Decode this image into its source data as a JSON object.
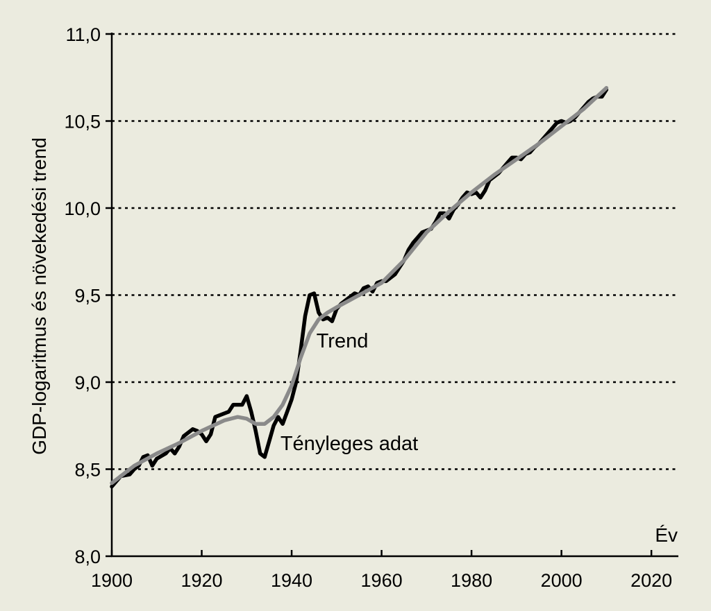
{
  "chart_data": {
    "type": "line",
    "title": "",
    "xlabel": "Év",
    "ylabel": "GDP-logaritmus és növekedési trend",
    "xlim": [
      1900,
      2026
    ],
    "ylim": [
      8.0,
      11.0
    ],
    "xticks": [
      1900,
      1920,
      1940,
      1960,
      1980,
      2000,
      2020
    ],
    "xtick_labels": [
      "1900",
      "1920",
      "1940",
      "1960",
      "1980",
      "2000",
      "2020"
    ],
    "yticks": [
      8.0,
      8.5,
      9.0,
      9.5,
      10.0,
      10.5,
      11.0
    ],
    "ytick_labels": [
      "8,0",
      "8,5",
      "9,0",
      "9,5",
      "10,0",
      "10,5",
      "11,0"
    ],
    "grid": "horizontal dotted",
    "series": [
      {
        "name": "Tényleges adat",
        "color": "#000000",
        "x": [
          1900,
          1902,
          1904,
          1905,
          1906,
          1907,
          1908,
          1909,
          1910,
          1912,
          1913,
          1914,
          1915,
          1916,
          1918,
          1919,
          1920,
          1921,
          1922,
          1923,
          1924,
          1926,
          1927,
          1928,
          1929,
          1930,
          1931,
          1932,
          1933,
          1934,
          1935,
          1936,
          1937,
          1938,
          1939,
          1940,
          1941,
          1942,
          1943,
          1944,
          1945,
          1946,
          1947,
          1948,
          1949,
          1950,
          1951,
          1953,
          1954,
          1955,
          1956,
          1957,
          1958,
          1959,
          1960,
          1961,
          1962,
          1963,
          1964,
          1965,
          1966,
          1967,
          1968,
          1969,
          1970,
          1971,
          1972,
          1973,
          1974,
          1975,
          1976,
          1977,
          1978,
          1979,
          1980,
          1981,
          1982,
          1983,
          1984,
          1985,
          1986,
          1987,
          1988,
          1989,
          1990,
          1991,
          1992,
          1993,
          1994,
          1995,
          1996,
          1997,
          1998,
          1999,
          2000,
          2001,
          2002,
          2003,
          2004,
          2005,
          2006,
          2007,
          2008,
          2009,
          2010
        ],
        "y": [
          8.4,
          8.46,
          8.47,
          8.5,
          8.52,
          8.57,
          8.58,
          8.52,
          8.56,
          8.59,
          8.62,
          8.59,
          8.63,
          8.69,
          8.73,
          8.72,
          8.7,
          8.66,
          8.7,
          8.8,
          8.81,
          8.83,
          8.87,
          8.87,
          8.87,
          8.92,
          8.83,
          8.72,
          8.59,
          8.57,
          8.66,
          8.75,
          8.8,
          8.76,
          8.83,
          8.9,
          9.0,
          9.18,
          9.38,
          9.5,
          9.51,
          9.4,
          9.36,
          9.37,
          9.35,
          9.42,
          9.45,
          9.49,
          9.51,
          9.5,
          9.54,
          9.55,
          9.52,
          9.57,
          9.58,
          9.58,
          9.6,
          9.62,
          9.66,
          9.7,
          9.76,
          9.8,
          9.83,
          9.86,
          9.87,
          9.88,
          9.92,
          9.97,
          9.97,
          9.94,
          9.99,
          10.02,
          10.06,
          10.09,
          10.08,
          10.09,
          10.06,
          10.1,
          10.16,
          10.18,
          10.2,
          10.23,
          10.26,
          10.29,
          10.29,
          10.28,
          10.31,
          10.32,
          10.35,
          10.37,
          10.4,
          10.43,
          10.46,
          10.49,
          10.5,
          10.49,
          10.5,
          10.52,
          10.55,
          10.58,
          10.61,
          10.63,
          10.64,
          10.64,
          10.68
        ]
      },
      {
        "name": "Trend",
        "color": "#8a8a8a",
        "x": [
          1900,
          1905,
          1910,
          1915,
          1920,
          1925,
          1928,
          1930,
          1932,
          1934,
          1936,
          1938,
          1940,
          1942,
          1944,
          1946,
          1948,
          1950,
          1955,
          1960,
          1965,
          1970,
          1975,
          1980,
          1985,
          1990,
          1995,
          2000,
          2005,
          2010
        ],
        "y": [
          8.42,
          8.52,
          8.59,
          8.65,
          8.72,
          8.78,
          8.8,
          8.79,
          8.76,
          8.76,
          8.8,
          8.87,
          8.98,
          9.14,
          9.28,
          9.36,
          9.4,
          9.43,
          9.5,
          9.57,
          9.7,
          9.86,
          9.98,
          10.09,
          10.19,
          10.28,
          10.37,
          10.47,
          10.57,
          10.69
        ]
      }
    ],
    "annotations": [
      {
        "text": "Trend",
        "x": 1945.5,
        "y": 9.2
      },
      {
        "text": "Tényleges adat",
        "x": 1937.5,
        "y": 8.61
      }
    ]
  }
}
